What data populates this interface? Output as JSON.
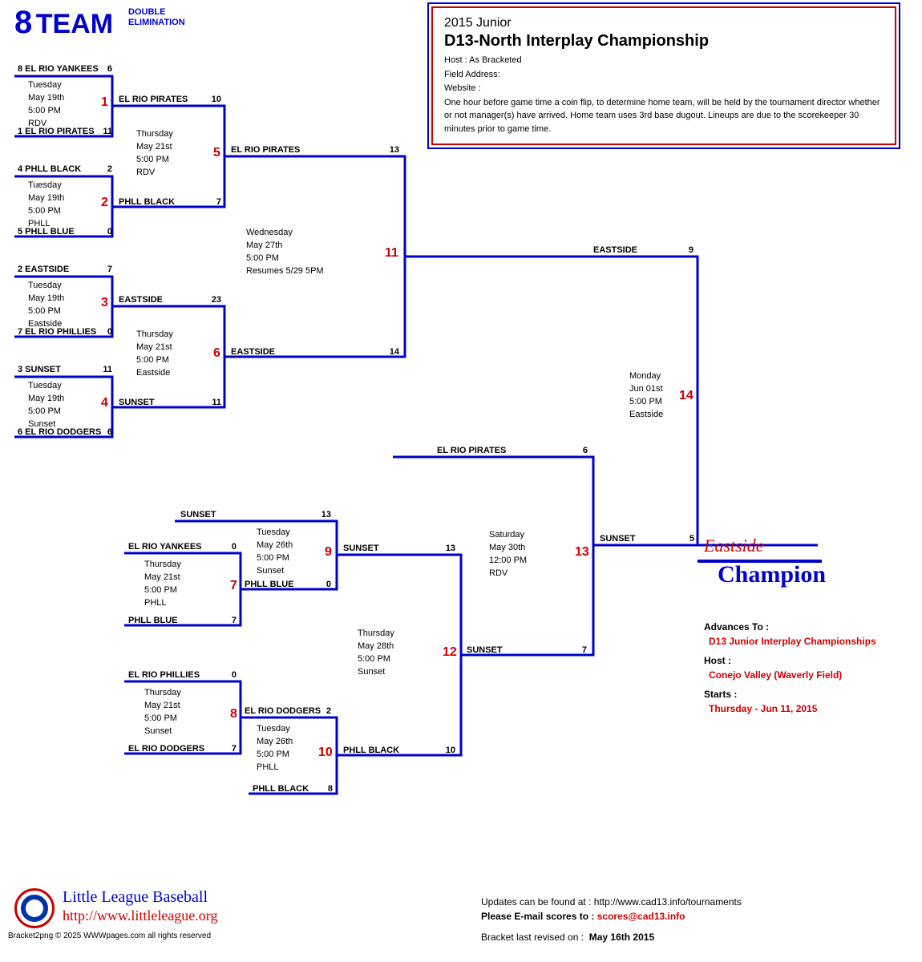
{
  "colors": {
    "bracket_line": "#0000cc",
    "game_number": "#cc0000",
    "text": "#000000",
    "bg": "#ffffff",
    "line_width": 3
  },
  "header": {
    "big_number": "8",
    "big_text": "TEAM",
    "sub1": "DOUBLE",
    "sub2": "ELIMINATION"
  },
  "info": {
    "year": "2015 Junior",
    "title": "D13-North Interplay Championship",
    "host": "Host : As Bracketed",
    "field": "Field Address:",
    "website": "Website :",
    "note": "One hour before game time a coin flip, to determine home team, will be held by the tournament director whether or not manager(s) have arrived. Home team uses 3rd base dugout. Lineups are due to the scorekeeper 30 minutes prior to game time."
  },
  "teams": {
    "g1_top": "8 EL RIO YANKEES",
    "g1_top_s": "6",
    "g1_bot": "1 EL RIO PIRATES",
    "g1_bot_s": "11",
    "g2_top": "4 PHLL BLACK",
    "g2_top_s": "2",
    "g2_bot": "5 PHLL BLUE",
    "g2_bot_s": "0",
    "g3_top": "2 EASTSIDE",
    "g3_top_s": "7",
    "g3_bot": "7 EL RIO PHILLIES",
    "g3_bot_s": "0",
    "g4_top": "3 SUNSET",
    "g4_top_s": "11",
    "g4_bot": "6 EL RIO DODGERS",
    "g4_bot_s": "6",
    "g5_top": "EL RIO PIRATES",
    "g5_top_s": "10",
    "g5_bot": "PHLL BLACK",
    "g5_bot_s": "7",
    "g6_top": "EASTSIDE",
    "g6_top_s": "23",
    "g6_bot": "SUNSET",
    "g6_bot_s": "11",
    "g11_top": "EL RIO PIRATES",
    "g11_top_s": "13",
    "g11_bot": "EASTSIDE",
    "g11_bot_s": "14",
    "g7_top": "EL RIO YANKEES",
    "g7_top_s": "0",
    "g7_bot": "PHLL BLUE",
    "g7_bot_s": "7",
    "g8_top": "EL RIO PHILLIES",
    "g8_top_s": "0",
    "g8_bot": "EL RIO DODGERS",
    "g8_bot_s": "7",
    "g9_top": "SUNSET",
    "g9_top_s": "13",
    "g9_bot": "PHLL BLUE",
    "g9_bot_s": "0",
    "g10_top": "EL RIO DODGERS",
    "g10_top_s": "2",
    "g10_bot": "PHLL BLACK",
    "g10_bot_s": "8",
    "g12_top": "SUNSET",
    "g12_top_s": "13",
    "g12_bot": "PHLL BLACK",
    "g12_bot_s": "10",
    "g13_top": "EL RIO PIRATES",
    "g13_top_s": "6",
    "g13_bot": "SUNSET",
    "g13_bot_s": "7",
    "g14_top": "EASTSIDE",
    "g14_top_s": "9",
    "g14_bot": "SUNSET",
    "g14_bot_s": "5"
  },
  "schedules": {
    "g1": "Tuesday\nMay 19th\n5:00 PM\nRDV",
    "g2": "Tuesday\nMay 19th\n5:00 PM\nPHLL",
    "g3": "Tuesday\nMay 19th\n5:00 PM\nEastside",
    "g4": "Tuesday\nMay 19th\n5:00 PM\nSunset",
    "g5": "Thursday\nMay 21st\n5:00 PM\nRDV",
    "g6": "Thursday\nMay 21st\n5:00 PM\nEastside",
    "g7": "Thursday\nMay 21st\n5:00 PM\nPHLL",
    "g8": "Thursday\nMay 21st\n5:00 PM\nSunset",
    "g9": "Tuesday\nMay 26th\n5:00 PM\nSunset",
    "g10": "Tuesday\nMay 26th\n5:00 PM\nPHLL",
    "g11": "Wednesday\nMay 27th\n5:00 PM\nResumes 5/29 5PM",
    "g12": "Thursday\nMay 28th\n5:00 PM\nSunset",
    "g13": "Saturday\nMay 30th\n12:00 PM\nRDV",
    "g14": "Monday\nJun 01st\n5:00 PM\nEastside"
  },
  "game_numbers": {
    "g1": "1",
    "g2": "2",
    "g3": "3",
    "g4": "4",
    "g5": "5",
    "g6": "6",
    "g7": "7",
    "g8": "8",
    "g9": "9",
    "g10": "10",
    "g11": "11",
    "g12": "12",
    "g13": "13",
    "g14": "14"
  },
  "champion": {
    "team": "Eastside",
    "label": "Champion",
    "advances_label": "Advances To :",
    "advances": "D13 Junior Interplay Championships",
    "host_label": "Host :",
    "host": "Conejo Valley  (Waverly Field)",
    "starts_label": "Starts :",
    "starts": "Thursday - Jun 11, 2015"
  },
  "footer": {
    "brand": "Little League Baseball",
    "url": "http://www.littleleague.org",
    "copyright": "Bracket2png © 2025 WWWpages.com  all rights reserved",
    "updates": "Updates can be found at : http://www.cad13.info/tournaments",
    "email_label": "Please E-mail scores to :",
    "email": "scores@cad13.info",
    "revised_label": "Bracket last revised on :",
    "revised": "May 16th 2015"
  }
}
